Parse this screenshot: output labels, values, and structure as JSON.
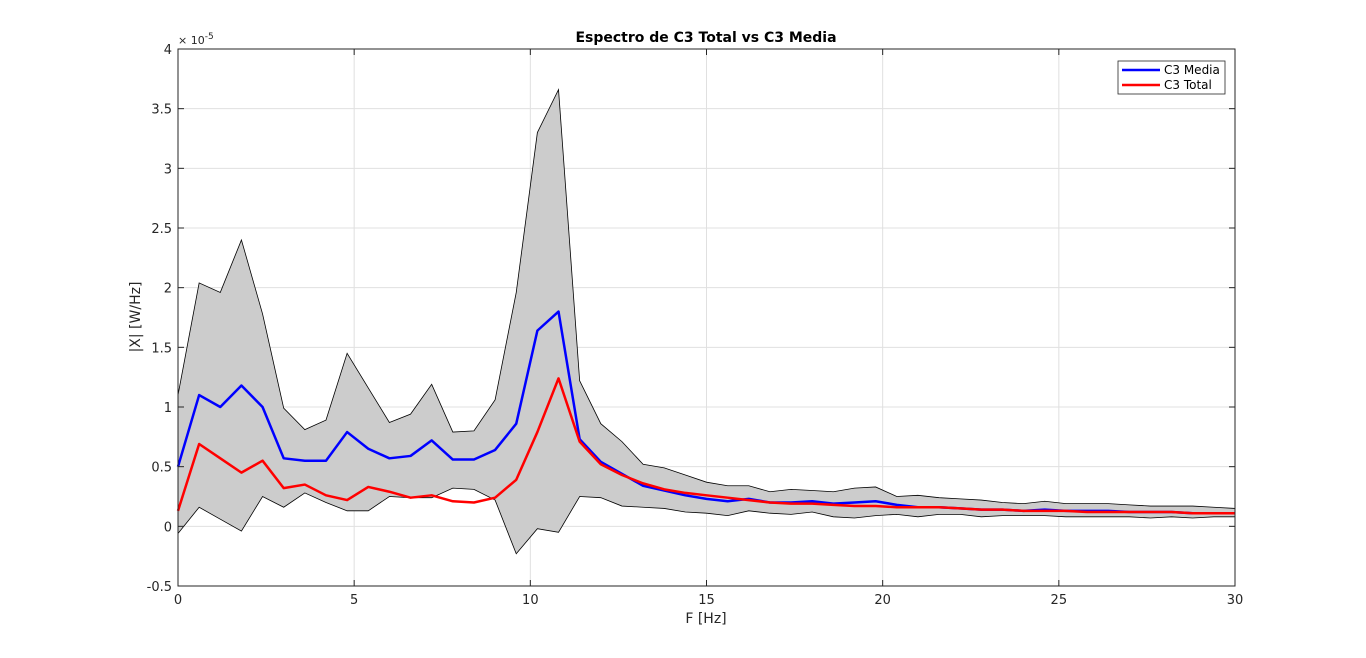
{
  "chart_data": {
    "type": "line",
    "title": "Espectro de C3 Total vs C3 Media",
    "xlabel": "F [Hz]",
    "ylabel": "|X| [W/Hz]",
    "y_exponent_label": "× 10",
    "y_exponent_value": "-5",
    "xlim": [
      0,
      30
    ],
    "ylim": [
      -0.5,
      4
    ],
    "y_scale_factor": "1e-5",
    "xticks": [
      0,
      5,
      10,
      15,
      20,
      25,
      30
    ],
    "xtick_labels": [
      "0",
      "5",
      "10",
      "15",
      "20",
      "25",
      "30"
    ],
    "yticks": [
      -0.5,
      0,
      0.5,
      1,
      1.5,
      2,
      2.5,
      3,
      3.5,
      4
    ],
    "ytick_labels": [
      "-0.5",
      "0",
      "0.5",
      "1",
      "1.5",
      "2",
      "2.5",
      "3",
      "3.5",
      "4"
    ],
    "grid": true,
    "legend_position": "top-right",
    "x": [
      0,
      0.6,
      1.2,
      1.8,
      2.4,
      3.0,
      3.6,
      4.2,
      4.8,
      5.4,
      6.0,
      6.6,
      7.2,
      7.8,
      8.4,
      9.0,
      9.6,
      10.2,
      10.8,
      11.4,
      12.0,
      12.6,
      13.2,
      13.8,
      14.4,
      15.0,
      15.6,
      16.2,
      16.8,
      17.4,
      18.0,
      18.6,
      19.2,
      19.8,
      20.4,
      21.0,
      21.6,
      22.2,
      22.8,
      23.4,
      24.0,
      24.6,
      25.2,
      25.8,
      26.4,
      27.0,
      27.6,
      28.2,
      28.8,
      29.4,
      30.0
    ],
    "series": [
      {
        "name": "C3 Media",
        "color": "#0000ff",
        "values": [
          0.5,
          1.1,
          1.0,
          1.18,
          1.0,
          0.57,
          0.55,
          0.55,
          0.79,
          0.65,
          0.57,
          0.59,
          0.72,
          0.56,
          0.56,
          0.64,
          0.86,
          1.64,
          1.8,
          0.73,
          0.54,
          0.44,
          0.34,
          0.3,
          0.26,
          0.23,
          0.21,
          0.23,
          0.2,
          0.2,
          0.21,
          0.19,
          0.2,
          0.21,
          0.18,
          0.16,
          0.16,
          0.15,
          0.14,
          0.14,
          0.13,
          0.14,
          0.13,
          0.13,
          0.13,
          0.12,
          0.12,
          0.12,
          0.11,
          0.11,
          0.11
        ]
      },
      {
        "name": "C3 Total",
        "color": "#ff0000",
        "values": [
          0.13,
          0.69,
          0.57,
          0.45,
          0.55,
          0.32,
          0.35,
          0.26,
          0.22,
          0.33,
          0.29,
          0.24,
          0.26,
          0.21,
          0.2,
          0.24,
          0.39,
          0.79,
          1.24,
          0.71,
          0.52,
          0.43,
          0.36,
          0.31,
          0.28,
          0.26,
          0.24,
          0.22,
          0.2,
          0.19,
          0.19,
          0.18,
          0.17,
          0.17,
          0.16,
          0.16,
          0.16,
          0.15,
          0.14,
          0.14,
          0.13,
          0.13,
          0.13,
          0.12,
          0.12,
          0.12,
          0.12,
          0.12,
          0.11,
          0.11,
          0.11
        ]
      }
    ],
    "band": {
      "fill": "#cccccc",
      "upper": [
        1.1,
        2.04,
        1.96,
        2.4,
        1.78,
        0.99,
        0.81,
        0.89,
        1.45,
        1.16,
        0.87,
        0.94,
        1.19,
        0.79,
        0.8,
        1.06,
        1.96,
        3.3,
        3.66,
        1.22,
        0.86,
        0.71,
        0.52,
        0.49,
        0.43,
        0.37,
        0.34,
        0.34,
        0.29,
        0.31,
        0.3,
        0.29,
        0.32,
        0.33,
        0.25,
        0.26,
        0.24,
        0.23,
        0.22,
        0.2,
        0.19,
        0.21,
        0.19,
        0.19,
        0.19,
        0.18,
        0.17,
        0.17,
        0.17,
        0.16,
        0.15
      ],
      "lower": [
        -0.06,
        0.16,
        0.06,
        -0.04,
        0.25,
        0.16,
        0.28,
        0.2,
        0.13,
        0.13,
        0.25,
        0.24,
        0.24,
        0.32,
        0.31,
        0.22,
        -0.23,
        -0.02,
        -0.05,
        0.25,
        0.24,
        0.17,
        0.16,
        0.15,
        0.12,
        0.11,
        0.09,
        0.13,
        0.11,
        0.1,
        0.12,
        0.08,
        0.07,
        0.09,
        0.1,
        0.08,
        0.1,
        0.1,
        0.08,
        0.09,
        0.09,
        0.09,
        0.08,
        0.08,
        0.08,
        0.08,
        0.07,
        0.08,
        0.07,
        0.08,
        0.08
      ]
    }
  }
}
